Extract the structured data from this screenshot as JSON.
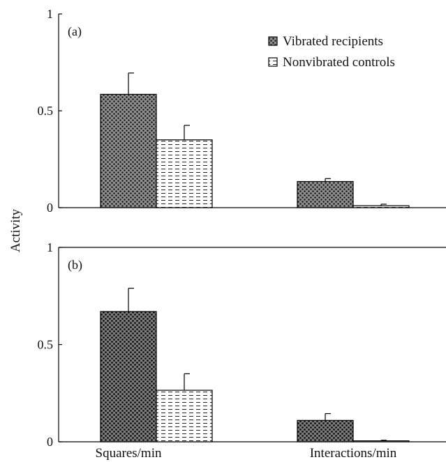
{
  "chart_data": [
    {
      "type": "bar",
      "panel_label": "(a)",
      "categories": [
        "Squares/min",
        "Interactions/min"
      ],
      "series": [
        {
          "name": "Vibrated recipients",
          "values": [
            0.585,
            0.135
          ],
          "errors": [
            0.11,
            0.015
          ],
          "pattern": "dense-dots"
        },
        {
          "name": "Nonvibrated controls",
          "values": [
            0.35,
            0.01
          ],
          "errors": [
            0.075,
            0.008
          ],
          "pattern": "dashes"
        }
      ],
      "ylim": [
        0,
        1
      ],
      "yticks": [
        "0",
        "0.5",
        "1"
      ],
      "legend": "top-right",
      "grid": false
    },
    {
      "type": "bar",
      "panel_label": "(b)",
      "categories": [
        "Squares/min",
        "Interactions/min"
      ],
      "series": [
        {
          "name": "Vibrated recipients",
          "values": [
            0.67,
            0.11
          ],
          "errors": [
            0.12,
            0.035
          ],
          "pattern": "dense-dots"
        },
        {
          "name": "Nonvibrated controls",
          "values": [
            0.265,
            0.005
          ],
          "errors": [
            0.085,
            0.003
          ],
          "pattern": "dashes"
        }
      ],
      "ylim": [
        0,
        1
      ],
      "yticks": [
        "0",
        "0.5",
        "1"
      ],
      "grid": false
    }
  ],
  "ylabel": "Activity",
  "xtick_labels": [
    "Squares/min",
    "Interactions/min"
  ],
  "colors": {
    "bar_fill": "#8f8f8f",
    "dot": "#141414",
    "outline": "#000000",
    "background": "#ffffff"
  }
}
